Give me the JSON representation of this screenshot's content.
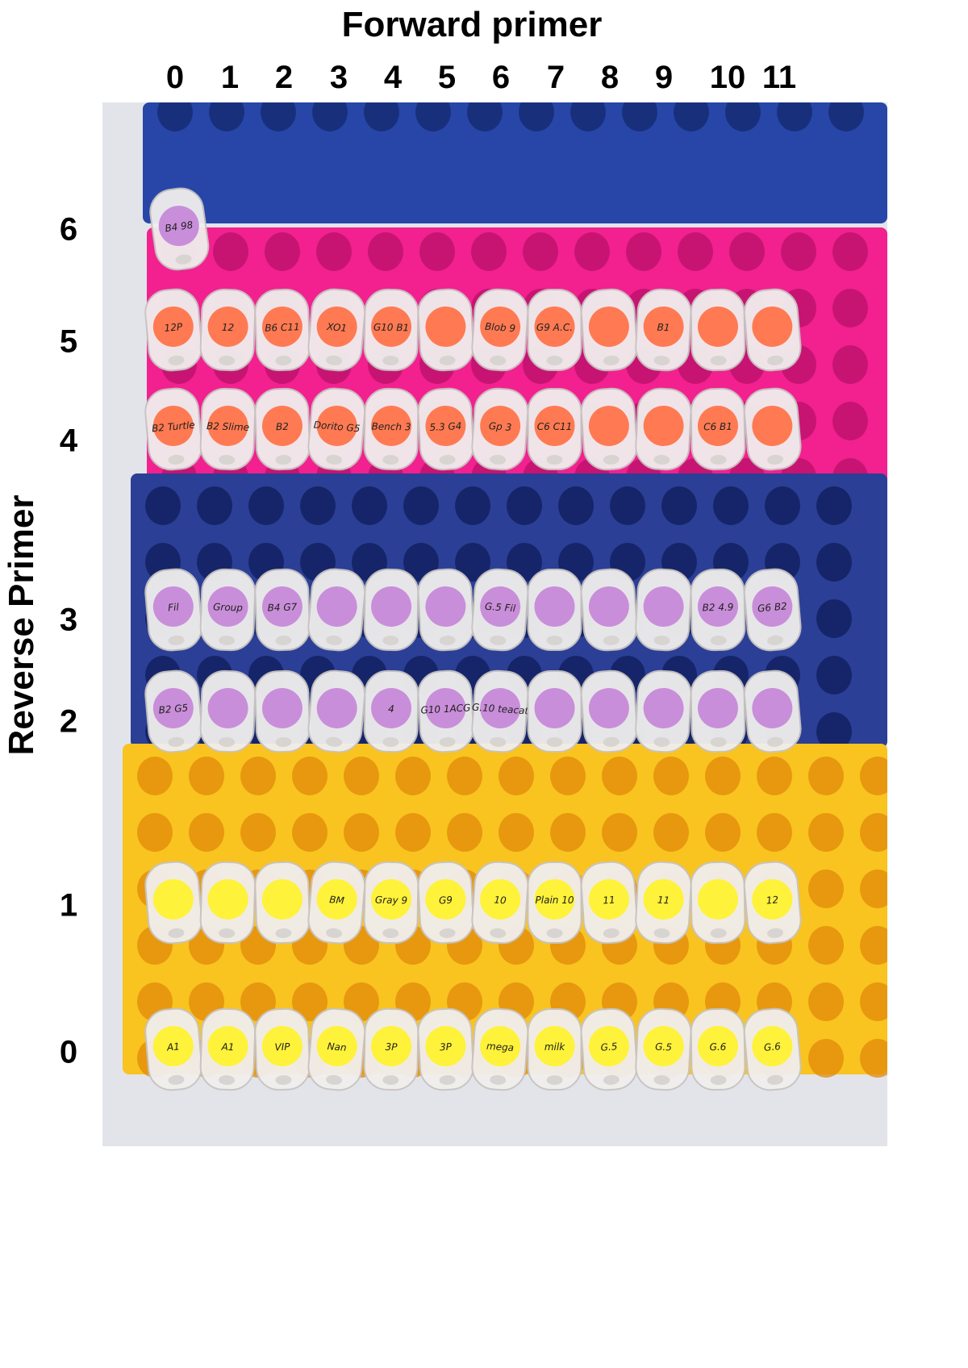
{
  "forward_axis": {
    "title": "Forward primer",
    "labels": [
      "0",
      "1",
      "2",
      "3",
      "4",
      "5",
      "6",
      "7",
      "8",
      "9",
      "10",
      "11"
    ]
  },
  "reverse_axis": {
    "title": "Reverse Primer",
    "labels": [
      "0",
      "1",
      "2",
      "3",
      "4",
      "5",
      "6"
    ]
  },
  "rack_colors": {
    "top_blue": "#2746a8",
    "pink": "#f2218f",
    "mid_blue": "#2b3f96",
    "yellow": "#f9c320",
    "sticker_orange": "#ff7a52",
    "sticker_purple": "#c98ed9",
    "sticker_yellow": "#fff23a",
    "tube": "#f1efee"
  },
  "tubes": {
    "row6": [
      {
        "label": "B4 98",
        "col": 0
      }
    ],
    "row5": [
      "12P",
      "12",
      "B6 C11",
      "XO1",
      "G10 B1",
      "",
      "Blob 9",
      "G9 A.C.",
      "",
      "B1",
      "",
      ""
    ],
    "row4": [
      "B2 Turtle",
      "B2 Slime",
      "B2",
      "Dorito G5",
      "Bench 3",
      "5.3 G4",
      "Gp 3",
      "C6 C11",
      "",
      "",
      "C6 B1",
      ""
    ],
    "row3": [
      "Fil",
      "Group",
      "B4 G7",
      "",
      "",
      "",
      "G.5 Fil",
      "",
      "",
      "",
      "B2 4.9",
      "G6 B2"
    ],
    "row2": [
      "B2 G5",
      "",
      "",
      "",
      "4",
      "G10 1ACG",
      "G.10 teacat",
      "",
      "",
      "",
      "",
      ""
    ],
    "row1": [
      "",
      "",
      "",
      "BM",
      "Gray 9",
      "G9",
      "10",
      "Plain 10",
      "11",
      "11",
      "",
      "12"
    ],
    "row0": [
      "A1",
      "A1",
      "VIP",
      "Nan",
      "3P",
      "3P",
      "mega",
      "milk",
      "G.5",
      "G.5",
      "G.6",
      "G.6"
    ]
  }
}
